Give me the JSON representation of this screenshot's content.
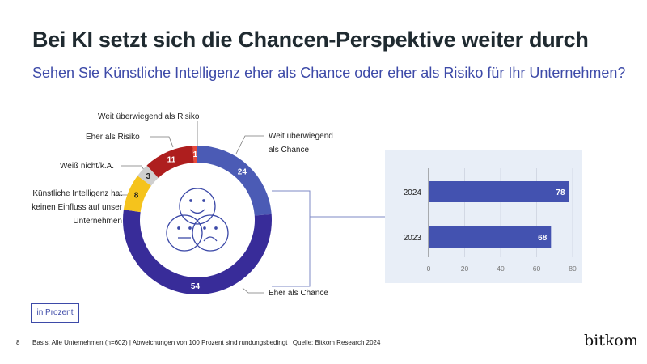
{
  "title": "Bei KI setzt sich die Chancen-Perspektive weiter durch",
  "subtitle": "Sehen Sie Künstliche Intelligenz eher als Chance oder eher als Risiko für Ihr Unternehmen?",
  "unit": "in Prozent",
  "page_number": "8",
  "footnote": "Basis: Alle Unternehmen (n=602) | Abweichungen von 100 Prozent sind rundungsbedingt | Quelle: Bitkom Research 2024",
  "logo": "bitkom",
  "chart_data": [
    {
      "type": "pie",
      "donut": true,
      "slices": [
        {
          "label": "Weit überwiegend als Chance",
          "value": 24,
          "color": "#4b5bb5"
        },
        {
          "label": "Eher als Chance",
          "value": 54,
          "color": "#382c99"
        },
        {
          "label": "Künstliche Intelligenz hat keinen Einfluss auf unser Unternehmen",
          "value": 8,
          "color": "#f5c31c"
        },
        {
          "label": "Weiß nicht/k.A.",
          "value": 3,
          "color": "#cfcfcf"
        },
        {
          "label": "Eher als Risiko",
          "value": 11,
          "color": "#ae1e1e"
        },
        {
          "label": "Weit überwiegend als Risiko",
          "value": 1,
          "color": "#e84a3c"
        }
      ]
    },
    {
      "type": "bar",
      "orientation": "horizontal",
      "categories": [
        "2024",
        "2023"
      ],
      "values": [
        78,
        68
      ],
      "xlim": [
        0,
        80
      ],
      "xticks": [
        0,
        20,
        40,
        60,
        80
      ],
      "color": "#4352b0",
      "grid": true
    }
  ]
}
